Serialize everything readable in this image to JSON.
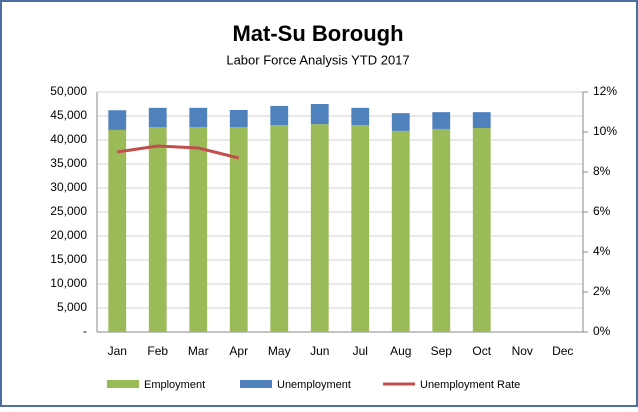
{
  "chart_data": {
    "type": "bar",
    "title": "Mat-Su Borough",
    "subtitle": "Labor Force Analysis YTD 2017",
    "categories": [
      "Jan",
      "Feb",
      "Mar",
      "Apr",
      "May",
      "Jun",
      "Jul",
      "Aug",
      "Sep",
      "Oct",
      "Nov",
      "Dec"
    ],
    "stacked": true,
    "series": [
      {
        "name": "Employment",
        "color": "#9bbb59",
        "values": [
          42100,
          42700,
          42700,
          42700,
          43100,
          43300,
          43100,
          41900,
          42300,
          42500,
          null,
          null
        ]
      },
      {
        "name": "Unemployment",
        "color": "#4f81bd",
        "values": [
          4100,
          4000,
          4000,
          3550,
          4000,
          4200,
          3600,
          3700,
          3500,
          3300,
          null,
          null
        ]
      },
      {
        "name": "Unemployment Rate",
        "color": "#c0504d",
        "type": "line",
        "axis": "y2",
        "values": [
          9.0,
          9.3,
          9.2,
          8.7,
          null,
          null,
          null,
          null,
          null,
          null,
          null,
          null
        ]
      }
    ],
    "ylim": [
      0,
      50000
    ],
    "yticks": [
      {
        "value": 0,
        "label": "-"
      },
      {
        "value": 5000,
        "label": "5,000"
      },
      {
        "value": 10000,
        "label": "10,000"
      },
      {
        "value": 15000,
        "label": "15,000"
      },
      {
        "value": 20000,
        "label": "20,000"
      },
      {
        "value": 25000,
        "label": "25,000"
      },
      {
        "value": 30000,
        "label": "30,000"
      },
      {
        "value": 35000,
        "label": "35,000"
      },
      {
        "value": 40000,
        "label": "40,000"
      },
      {
        "value": 45000,
        "label": "45,000"
      },
      {
        "value": 50000,
        "label": "50,000"
      }
    ],
    "y2lim": [
      0,
      12
    ],
    "y2ticks": [
      {
        "value": 0,
        "label": "0%"
      },
      {
        "value": 2,
        "label": "2%"
      },
      {
        "value": 4,
        "label": "4%"
      },
      {
        "value": 6,
        "label": "6%"
      },
      {
        "value": 8,
        "label": "8%"
      },
      {
        "value": 10,
        "label": "10%"
      },
      {
        "value": 12,
        "label": "12%"
      }
    ],
    "grid": true,
    "legend": "bottom"
  }
}
